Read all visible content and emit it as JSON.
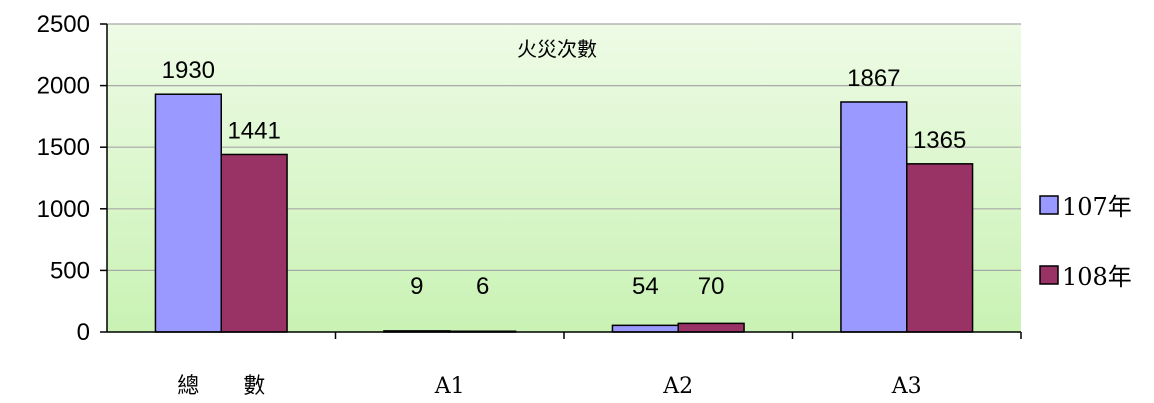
{
  "chart_data": {
    "type": "bar",
    "title": "火災次數",
    "categories": [
      "總　　數",
      "A1",
      "A2",
      "A3"
    ],
    "series": [
      {
        "name": "107年",
        "values": [
          1930,
          9,
          54,
          1867
        ],
        "color": "#9999ff"
      },
      {
        "name": "108年",
        "values": [
          1441,
          6,
          70,
          1365
        ],
        "color": "#993366"
      }
    ],
    "ylim": [
      0,
      2500
    ],
    "yticks": [
      0,
      500,
      1000,
      1500,
      2000,
      2500
    ],
    "grid": true,
    "legend_position": "right",
    "plot_background": "gradient-green"
  }
}
